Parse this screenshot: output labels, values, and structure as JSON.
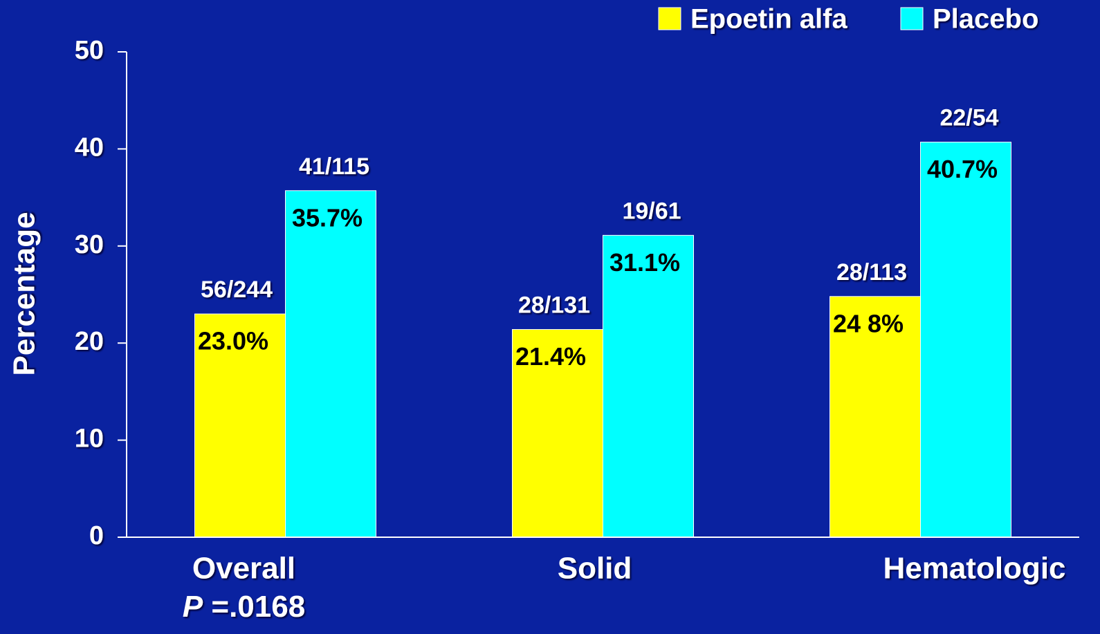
{
  "chart_data": {
    "type": "bar",
    "ylabel": "Percentage",
    "categories": [
      "Overall",
      "Solid",
      "Hematologic"
    ],
    "annotation": {
      "symbol": "P",
      "text": " =.0168"
    },
    "series": [
      {
        "name": "Epoetin alfa",
        "color": "#ffff00",
        "values": [
          23.0,
          21.4,
          24.8
        ],
        "value_labels": [
          "23.0%",
          "21.4%",
          "24 8%"
        ],
        "fractions": [
          "56/244",
          "28/131",
          "28/113"
        ]
      },
      {
        "name": "Placebo",
        "color": "#00ffff",
        "values": [
          35.7,
          31.1,
          40.7
        ],
        "value_labels": [
          "35.7%",
          "31.1%",
          "40.7%"
        ],
        "fractions": [
          "41/115",
          "19/61",
          "22/54"
        ]
      }
    ],
    "ylim": [
      0,
      50
    ],
    "yticks": [
      0,
      10,
      20,
      30,
      40,
      50
    ],
    "legend": "top-right"
  }
}
